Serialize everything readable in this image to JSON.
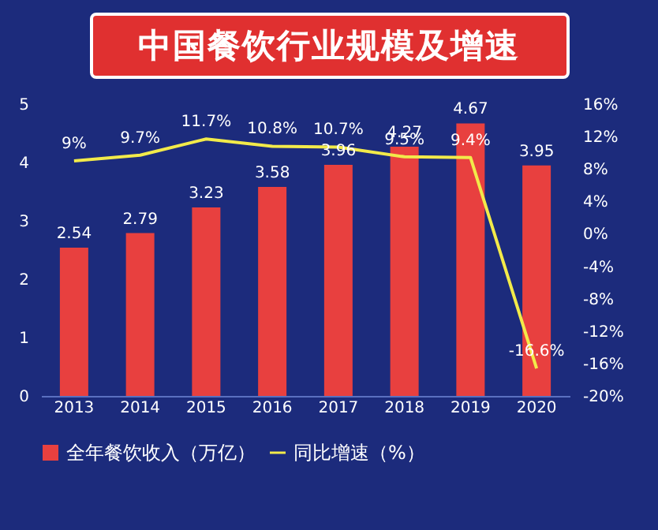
{
  "chart_data": {
    "type": "bar",
    "title": "中国餐饮行业规模及增速",
    "categories": [
      "2013",
      "2014",
      "2015",
      "2016",
      "2017",
      "2018",
      "2019",
      "2020"
    ],
    "series": [
      {
        "name": "全年餐饮收入（万亿）",
        "color": "#e8403f",
        "values": [
          2.54,
          2.79,
          3.23,
          3.58,
          3.96,
          4.27,
          4.67,
          3.95
        ],
        "value_labels": [
          "2.54",
          "2.79",
          "3.23",
          "3.58",
          "3.96",
          "4.27",
          "4.67",
          "3.95"
        ]
      },
      {
        "name": "同比增速（%）",
        "type": "line",
        "axis": "y2",
        "color": "#f2ea4a",
        "values": [
          9,
          9.7,
          11.7,
          10.8,
          10.7,
          9.5,
          9.4,
          -16.6
        ],
        "value_labels": [
          "9%",
          "9.7%",
          "11.7%",
          "10.8%",
          "10.7%",
          "9.5%",
          "9.4%",
          "-16.6%"
        ]
      }
    ],
    "ylim": [
      0,
      5
    ],
    "yticks": [
      0,
      1,
      2,
      3,
      4,
      5
    ],
    "y2lim": [
      -20,
      16
    ],
    "y2ticks": [
      {
        "value": -20,
        "label": "-20%"
      },
      {
        "value": -16,
        "label": "-16%"
      },
      {
        "value": -12,
        "label": "-12%"
      },
      {
        "value": -8,
        "label": "-8%"
      },
      {
        "value": -4,
        "label": "-4%"
      },
      {
        "value": 0,
        "label": "0%"
      },
      {
        "value": 4,
        "label": "4%"
      },
      {
        "value": 8,
        "label": "8%"
      },
      {
        "value": 12,
        "label": "12%"
      },
      {
        "value": 16,
        "label": "16%"
      }
    ],
    "grid": false,
    "legend": "bottom"
  }
}
